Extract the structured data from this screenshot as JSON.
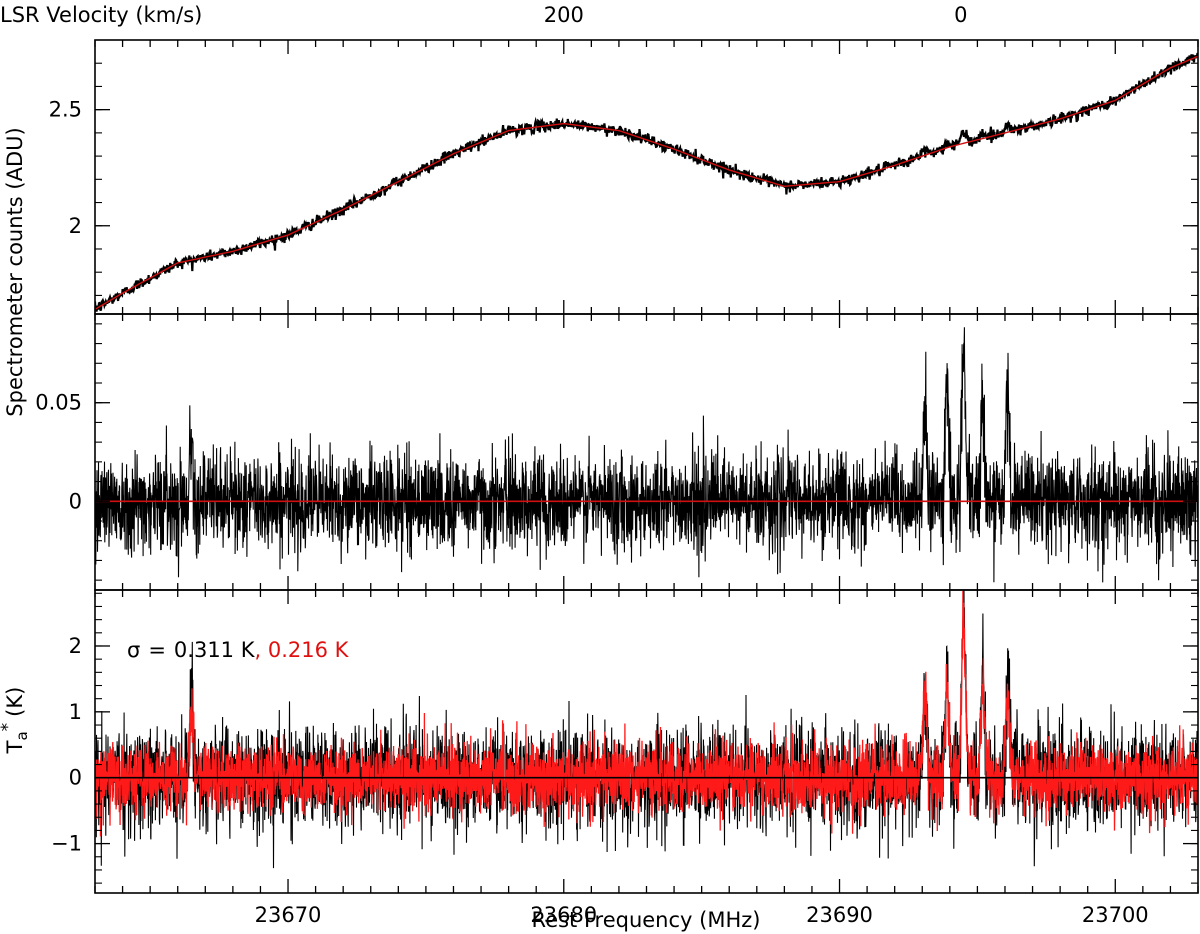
{
  "chart_data": [
    {
      "panel": "top",
      "type": "line",
      "top_axis": {
        "label": "LSR Velocity (km/s)",
        "label_color": "#2020ff",
        "tick_labels": [
          "200",
          "0"
        ],
        "tick_frequencies_mhz": [
          23680.0,
          23694.4
        ]
      },
      "xlim": [
        23663.0,
        23703.0
      ],
      "ylim": [
        1.62,
        2.8
      ],
      "ytick_labels": [
        "2",
        "2.5"
      ],
      "yticks": [
        2.0,
        2.5
      ],
      "series": [
        {
          "color": "#000000",
          "style": "noisy spectrum",
          "x": [
            23663,
            23664,
            23666,
            23668,
            23670,
            23672,
            23674,
            23676,
            23678,
            23680,
            23682,
            23684,
            23686,
            23688,
            23690,
            23692,
            23694,
            23696,
            23698,
            23700,
            23702,
            23703
          ],
          "y": [
            1.64,
            1.71,
            1.84,
            1.89,
            1.96,
            2.07,
            2.19,
            2.31,
            2.41,
            2.44,
            2.41,
            2.33,
            2.24,
            2.17,
            2.19,
            2.26,
            2.34,
            2.4,
            2.46,
            2.54,
            2.68,
            2.73
          ]
        },
        {
          "color": "#d01010",
          "style": "baseline fit",
          "x": [
            23663,
            23664,
            23666,
            23668,
            23670,
            23672,
            23674,
            23676,
            23678,
            23680,
            23682,
            23684,
            23686,
            23688,
            23690,
            23692,
            23694,
            23696,
            23698,
            23700,
            23702,
            23703
          ],
          "y": [
            1.64,
            1.71,
            1.84,
            1.89,
            1.96,
            2.07,
            2.19,
            2.31,
            2.41,
            2.44,
            2.41,
            2.33,
            2.24,
            2.17,
            2.19,
            2.26,
            2.34,
            2.4,
            2.46,
            2.54,
            2.68,
            2.73
          ]
        }
      ],
      "line_features_mhz": [
        {
          "x": 23693.1,
          "height": 0.02
        },
        {
          "x": 23693.9,
          "height": 0.02
        },
        {
          "x": 23694.5,
          "height": 0.04
        },
        {
          "x": 23695.2,
          "height": 0.02
        },
        {
          "x": 23696.1,
          "height": 0.03
        }
      ]
    },
    {
      "panel": "middle",
      "type": "line",
      "xlim": [
        23663.0,
        23703.0
      ],
      "ylim": [
        -0.045,
        0.095
      ],
      "ytick_labels": [
        "0",
        "0.05"
      ],
      "yticks": [
        0.0,
        0.05
      ],
      "noise_amplitude": 0.012,
      "baseline": {
        "color": "#d01010",
        "y": 0
      },
      "peaks": [
        {
          "x": 23666.5,
          "height": 0.031
        },
        {
          "x": 23693.1,
          "height": 0.05
        },
        {
          "x": 23693.9,
          "height": 0.065
        },
        {
          "x": 23694.5,
          "height": 0.082
        },
        {
          "x": 23695.2,
          "height": 0.056
        },
        {
          "x": 23696.1,
          "height": 0.056
        }
      ]
    },
    {
      "panel": "bottom",
      "type": "line",
      "xlim": [
        23663.0,
        23703.0
      ],
      "ylim": [
        -1.75,
        2.85
      ],
      "ytick_labels": [
        "−1",
        "0",
        "1",
        "2"
      ],
      "yticks": [
        -1,
        0,
        1,
        2
      ],
      "ylabel_main": "T",
      "ylabel_sub": "a",
      "ylabel_sup": "*",
      "ylabel_unit": "(K)",
      "xtick_labels": [
        "23670",
        "23680",
        "23690",
        "23700"
      ],
      "xticks": [
        23670,
        23680,
        23690,
        23700
      ],
      "xlabel": "Rest Frequency (MHz)",
      "annotation": {
        "sigma_symbol": "σ",
        "equals": "=",
        "value_black": "0.311 K",
        "value_red": ", 0.216 K",
        "color_black": "#000000",
        "color_red": "#e01010"
      },
      "series": [
        {
          "color": "#000000",
          "noise_amplitude": 0.38
        },
        {
          "color": "#ff1a1a",
          "noise_amplitude": 0.26
        }
      ],
      "zero_line": {
        "color": "#000000",
        "y": 0
      },
      "peaks": [
        {
          "x": 23666.5,
          "height": 1.15
        },
        {
          "x": 23693.1,
          "height": 1.3
        },
        {
          "x": 23693.9,
          "height": 1.5
        },
        {
          "x": 23694.5,
          "height": 2.6
        },
        {
          "x": 23695.2,
          "height": 1.55
        },
        {
          "x": 23696.1,
          "height": 1.4
        }
      ]
    }
  ],
  "shared_ylabel": "Spectrometer counts (ADU)"
}
